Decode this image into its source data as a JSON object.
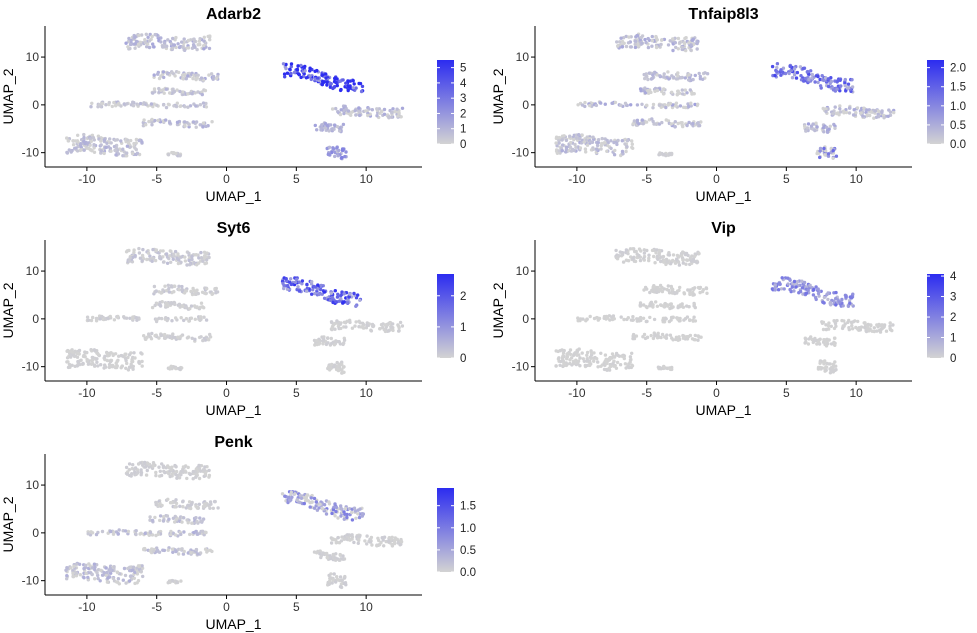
{
  "chart_data": [
    {
      "type": "scatter",
      "title": "Adarb2",
      "xlabel": "UMAP_1",
      "ylabel": "UMAP_2",
      "xlim": [
        -13,
        14
      ],
      "ylim": [
        -13,
        16.5
      ],
      "xticks": [
        "-10",
        "-5",
        "0",
        "5",
        "10"
      ],
      "yticks": [
        "-10",
        "0",
        "10"
      ],
      "color_scale": {
        "low": "#d3d3d3",
        "high": "#2c2cf0",
        "min": 0,
        "max": 5.5,
        "ticks": [
          "5",
          "4",
          "3",
          "2",
          "1",
          "0"
        ]
      },
      "cluster_expression": [
        0.9,
        0.8,
        0.6,
        0.6,
        0.8,
        0.7,
        0.4,
        5.2,
        0.9,
        1.0,
        1.6
      ],
      "grid": false,
      "legend": "right"
    },
    {
      "type": "scatter",
      "title": "Tnfaip8l3",
      "xlabel": "UMAP_1",
      "ylabel": "UMAP_2",
      "xlim": [
        -13,
        14
      ],
      "ylim": [
        -13,
        16.5
      ],
      "xticks": [
        "-10",
        "-5",
        "0",
        "5",
        "10"
      ],
      "yticks": [
        "-10",
        "0",
        "10"
      ],
      "color_scale": {
        "low": "#d3d3d3",
        "high": "#2c2cf0",
        "min": 0,
        "max": 2.2,
        "ticks": [
          "2.0",
          "1.5",
          "1.0",
          "0.5",
          "0.0"
        ]
      },
      "cluster_expression": [
        0.35,
        0.3,
        0.35,
        0.4,
        0.35,
        0.3,
        0.05,
        1.1,
        0.35,
        0.4,
        0.9
      ],
      "grid": false,
      "legend": "right"
    },
    {
      "type": "scatter",
      "title": "Syt6",
      "xlabel": "UMAP_1",
      "ylabel": "UMAP_2",
      "xlim": [
        -13,
        14
      ],
      "ylim": [
        -13,
        16.5
      ],
      "xticks": [
        "-10",
        "-5",
        "0",
        "5",
        "10"
      ],
      "yticks": [
        "-10",
        "0",
        "10"
      ],
      "color_scale": {
        "low": "#d3d3d3",
        "high": "#2c2cf0",
        "min": 0,
        "max": 2.7,
        "ticks": [
          "2",
          "1",
          "0"
        ]
      },
      "cluster_expression": [
        0.2,
        0.15,
        0.1,
        0.1,
        0.1,
        0.05,
        0.05,
        1.6,
        0.05,
        0.05,
        0.05
      ],
      "grid": false,
      "legend": "right"
    },
    {
      "type": "scatter",
      "title": "Vip",
      "xlabel": "UMAP_1",
      "ylabel": "UMAP_2",
      "xlim": [
        -13,
        14
      ],
      "ylim": [
        -13,
        16.5
      ],
      "xticks": [
        "-10",
        "-5",
        "0",
        "5",
        "10"
      ],
      "yticks": [
        "-10",
        "0",
        "10"
      ],
      "color_scale": {
        "low": "#d3d3d3",
        "high": "#2c2cf0",
        "min": 0,
        "max": 4.1,
        "ticks": [
          "4",
          "3",
          "2",
          "1",
          "0"
        ]
      },
      "cluster_expression": [
        0.1,
        0.05,
        0.05,
        0.05,
        0.05,
        0.05,
        0.05,
        1.5,
        0.05,
        0.05,
        0.05
      ],
      "grid": false,
      "legend": "right"
    },
    {
      "type": "scatter",
      "title": "Penk",
      "xlabel": "UMAP_1",
      "ylabel": "UMAP_2",
      "xlim": [
        -13,
        14
      ],
      "ylim": [
        -13,
        16.5
      ],
      "xticks": [
        "-10",
        "-5",
        "0",
        "5",
        "10"
      ],
      "yticks": [
        "-10",
        "0",
        "10"
      ],
      "color_scale": {
        "low": "#d3d3d3",
        "high": "#2c2cf0",
        "min": 0,
        "max": 1.9,
        "ticks": [
          "1.5",
          "1.0",
          "0.5",
          "0.0"
        ]
      },
      "cluster_expression": [
        0.05,
        0.1,
        0.2,
        0.25,
        0.2,
        0.25,
        0.05,
        0.6,
        0.05,
        0.05,
        0.05
      ],
      "grid": false,
      "legend": "right"
    }
  ],
  "colors": {
    "point_low": "#d3d3d3",
    "point_high": "#2c2cf0",
    "axis": "#000000"
  }
}
